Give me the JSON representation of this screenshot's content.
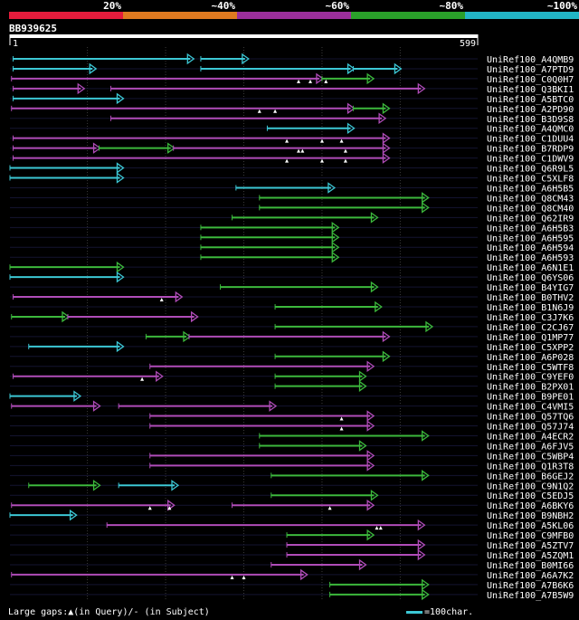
{
  "colors": {
    "background": "#000000",
    "band_20": "#e51c3c",
    "band_40": "#e07a20",
    "band_60": "#9c2f9c",
    "band_80": "#2aa02a",
    "band_100": "#22b5c6",
    "cyan": "#3cc7d4",
    "green": "#3cb83c",
    "magenta": "#b04cb8",
    "ruler": "#ffffff",
    "grid": "#3a3a3a"
  },
  "identity_legend": [
    "20%",
    "~40%",
    "~60%",
    "~80%",
    "~100%"
  ],
  "query": {
    "id": "BB939625",
    "start": "1",
    "end": "599",
    "length": 599
  },
  "hits": [
    {
      "name": "UniRef100_A4QMB9",
      "segments": [
        {
          "s": 5,
          "e": 235,
          "c": "cyan"
        },
        {
          "s": 245,
          "e": 305,
          "c": "cyan"
        }
      ],
      "gaps": []
    },
    {
      "name": "UniRef100_A7PTD9",
      "segments": [
        {
          "s": 5,
          "e": 110,
          "c": "cyan"
        },
        {
          "s": 245,
          "e": 440,
          "c": "cyan"
        },
        {
          "s": 440,
          "e": 500,
          "c": "cyan"
        }
      ],
      "gaps": []
    },
    {
      "name": "UniRef100_C0Q0H7",
      "segments": [
        {
          "s": 3,
          "e": 400,
          "c": "magenta"
        },
        {
          "s": 400,
          "e": 465,
          "c": "green"
        }
      ],
      "gaps": [
        370,
        385,
        405
      ]
    },
    {
      "name": "UniRef100_Q3BKI1",
      "segments": [
        {
          "s": 5,
          "e": 95,
          "c": "magenta"
        },
        {
          "s": 130,
          "e": 530,
          "c": "magenta"
        }
      ],
      "gaps": []
    },
    {
      "name": "UniRef100_A5BTC0",
      "segments": [
        {
          "s": 5,
          "e": 145,
          "c": "cyan"
        }
      ],
      "gaps": []
    },
    {
      "name": "UniRef100_A2PD90",
      "segments": [
        {
          "s": 3,
          "e": 440,
          "c": "magenta"
        },
        {
          "s": 440,
          "e": 485,
          "c": "green"
        }
      ],
      "gaps": [
        320,
        340
      ]
    },
    {
      "name": "UniRef100_B3D9S8",
      "segments": [
        {
          "s": 130,
          "e": 480,
          "c": "magenta"
        }
      ],
      "gaps": []
    },
    {
      "name": "UniRef100_A4QMC0",
      "segments": [
        {
          "s": 330,
          "e": 440,
          "c": "cyan"
        }
      ],
      "gaps": []
    },
    {
      "name": "UniRef100_C1DUU4",
      "segments": [
        {
          "s": 5,
          "e": 485,
          "c": "magenta"
        }
      ],
      "gaps": [
        355,
        400,
        425
      ]
    },
    {
      "name": "UniRef100_B7RDP9",
      "segments": [
        {
          "s": 5,
          "e": 115,
          "c": "magenta"
        },
        {
          "s": 115,
          "e": 210,
          "c": "green"
        },
        {
          "s": 210,
          "e": 485,
          "c": "magenta"
        }
      ],
      "gaps": [
        370,
        375,
        430
      ]
    },
    {
      "name": "UniRef100_C1DWV9",
      "segments": [
        {
          "s": 5,
          "e": 485,
          "c": "magenta"
        }
      ],
      "gaps": [
        355,
        400,
        430
      ]
    },
    {
      "name": "UniRef100_Q6R9L5",
      "segments": [
        {
          "s": 1,
          "e": 145,
          "c": "cyan"
        }
      ],
      "gaps": []
    },
    {
      "name": "UniRef100_C5XLF8",
      "segments": [
        {
          "s": 1,
          "e": 145,
          "c": "cyan"
        }
      ],
      "gaps": []
    },
    {
      "name": "UniRef100_A6H5B5",
      "segments": [
        {
          "s": 290,
          "e": 415,
          "c": "cyan"
        }
      ],
      "gaps": []
    },
    {
      "name": "UniRef100_Q8CM43",
      "segments": [
        {
          "s": 320,
          "e": 535,
          "c": "green"
        }
      ],
      "gaps": []
    },
    {
      "name": "UniRef100_Q8CM40",
      "segments": [
        {
          "s": 320,
          "e": 535,
          "c": "green"
        }
      ],
      "gaps": []
    },
    {
      "name": "UniRef100_Q62IR9",
      "segments": [
        {
          "s": 285,
          "e": 470,
          "c": "green"
        }
      ],
      "gaps": []
    },
    {
      "name": "UniRef100_A6H5B3",
      "segments": [
        {
          "s": 245,
          "e": 420,
          "c": "green"
        }
      ],
      "gaps": []
    },
    {
      "name": "UniRef100_A6H595",
      "segments": [
        {
          "s": 245,
          "e": 420,
          "c": "green"
        }
      ],
      "gaps": []
    },
    {
      "name": "UniRef100_A6H594",
      "segments": [
        {
          "s": 245,
          "e": 420,
          "c": "green"
        }
      ],
      "gaps": []
    },
    {
      "name": "UniRef100_A6H593",
      "segments": [
        {
          "s": 245,
          "e": 420,
          "c": "green"
        }
      ],
      "gaps": []
    },
    {
      "name": "UniRef100_A6N1E1",
      "segments": [
        {
          "s": 1,
          "e": 145,
          "c": "green"
        }
      ],
      "gaps": []
    },
    {
      "name": "UniRef100_Q6YS06",
      "segments": [
        {
          "s": 1,
          "e": 145,
          "c": "cyan"
        }
      ],
      "gaps": []
    },
    {
      "name": "UniRef100_B4YIG7",
      "segments": [
        {
          "s": 270,
          "e": 470,
          "c": "green"
        }
      ],
      "gaps": []
    },
    {
      "name": "UniRef100_B0THV2",
      "segments": [
        {
          "s": 5,
          "e": 220,
          "c": "magenta"
        }
      ],
      "gaps": [
        195
      ]
    },
    {
      "name": "UniRef100_B1N6J9",
      "segments": [
        {
          "s": 340,
          "e": 475,
          "c": "green"
        }
      ],
      "gaps": []
    },
    {
      "name": "UniRef100_C3J7K6",
      "segments": [
        {
          "s": 3,
          "e": 75,
          "c": "green"
        },
        {
          "s": 75,
          "e": 240,
          "c": "magenta"
        }
      ],
      "gaps": []
    },
    {
      "name": "UniRef100_C2CJ67",
      "segments": [
        {
          "s": 340,
          "e": 540,
          "c": "green"
        }
      ],
      "gaps": []
    },
    {
      "name": "UniRef100_Q1MP77",
      "segments": [
        {
          "s": 175,
          "e": 230,
          "c": "green"
        },
        {
          "s": 230,
          "e": 485,
          "c": "magenta"
        }
      ],
      "gaps": []
    },
    {
      "name": "UniRef100_C5XPP2",
      "segments": [
        {
          "s": 25,
          "e": 145,
          "c": "cyan"
        }
      ],
      "gaps": []
    },
    {
      "name": "UniRef100_A6P028",
      "segments": [
        {
          "s": 340,
          "e": 485,
          "c": "green"
        }
      ],
      "gaps": []
    },
    {
      "name": "UniRef100_C5WTF8",
      "segments": [
        {
          "s": 180,
          "e": 465,
          "c": "magenta"
        }
      ],
      "gaps": []
    },
    {
      "name": "UniRef100_C9YEF0",
      "segments": [
        {
          "s": 5,
          "e": 195,
          "c": "magenta"
        },
        {
          "s": 340,
          "e": 455,
          "c": "green"
        }
      ],
      "gaps": [
        170
      ]
    },
    {
      "name": "UniRef100_B2PX01",
      "segments": [
        {
          "s": 340,
          "e": 455,
          "c": "green"
        }
      ],
      "gaps": []
    },
    {
      "name": "UniRef100_B9PE01",
      "segments": [
        {
          "s": 1,
          "e": 90,
          "c": "cyan"
        }
      ],
      "gaps": []
    },
    {
      "name": "UniRef100_C4VMI5",
      "segments": [
        {
          "s": 3,
          "e": 115,
          "c": "magenta"
        },
        {
          "s": 140,
          "e": 340,
          "c": "magenta"
        }
      ],
      "gaps": []
    },
    {
      "name": "UniRef100_Q57TQ6",
      "segments": [
        {
          "s": 180,
          "e": 465,
          "c": "magenta"
        }
      ],
      "gaps": [
        425
      ]
    },
    {
      "name": "UniRef100_Q57J74",
      "segments": [
        {
          "s": 180,
          "e": 465,
          "c": "magenta"
        }
      ],
      "gaps": [
        425
      ]
    },
    {
      "name": "UniRef100_A4ECR2",
      "segments": [
        {
          "s": 320,
          "e": 535,
          "c": "green"
        }
      ],
      "gaps": []
    },
    {
      "name": "UniRef100_A6FJV5",
      "segments": [
        {
          "s": 320,
          "e": 455,
          "c": "green"
        }
      ],
      "gaps": []
    },
    {
      "name": "UniRef100_C5WBP4",
      "segments": [
        {
          "s": 180,
          "e": 465,
          "c": "magenta"
        }
      ],
      "gaps": []
    },
    {
      "name": "UniRef100_Q1R3T8",
      "segments": [
        {
          "s": 180,
          "e": 465,
          "c": "magenta"
        }
      ],
      "gaps": []
    },
    {
      "name": "UniRef100_B6GEJ2",
      "segments": [
        {
          "s": 335,
          "e": 535,
          "c": "green"
        }
      ],
      "gaps": []
    },
    {
      "name": "UniRef100_C9N1Q2",
      "segments": [
        {
          "s": 25,
          "e": 115,
          "c": "green"
        },
        {
          "s": 140,
          "e": 215,
          "c": "cyan"
        }
      ],
      "gaps": []
    },
    {
      "name": "UniRef100_C5EDJ5",
      "segments": [
        {
          "s": 335,
          "e": 470,
          "c": "green"
        }
      ],
      "gaps": []
    },
    {
      "name": "UniRef100_A6BKY6",
      "segments": [
        {
          "s": 3,
          "e": 210,
          "c": "magenta"
        },
        {
          "s": 285,
          "e": 465,
          "c": "magenta"
        }
      ],
      "gaps": [
        180,
        205,
        410
      ]
    },
    {
      "name": "UniRef100_B9NBH2",
      "segments": [
        {
          "s": 1,
          "e": 85,
          "c": "cyan"
        }
      ],
      "gaps": []
    },
    {
      "name": "UniRef100_A5KL06",
      "segments": [
        {
          "s": 125,
          "e": 530,
          "c": "magenta"
        }
      ],
      "gaps": [
        470,
        475
      ]
    },
    {
      "name": "UniRef100_C9MFB0",
      "segments": [
        {
          "s": 355,
          "e": 465,
          "c": "green"
        }
      ],
      "gaps": []
    },
    {
      "name": "UniRef100_A5ZTV7",
      "segments": [
        {
          "s": 355,
          "e": 530,
          "c": "magenta"
        }
      ],
      "gaps": []
    },
    {
      "name": "UniRef100_A5ZQM1",
      "segments": [
        {
          "s": 355,
          "e": 530,
          "c": "magenta"
        }
      ],
      "gaps": []
    },
    {
      "name": "UniRef100_B0MI66",
      "segments": [
        {
          "s": 335,
          "e": 455,
          "c": "magenta"
        }
      ],
      "gaps": []
    },
    {
      "name": "UniRef100_A6A7K2",
      "segments": [
        {
          "s": 3,
          "e": 380,
          "c": "magenta"
        }
      ],
      "gaps": [
        285,
        300
      ]
    },
    {
      "name": "UniRef100_A7B6K6",
      "segments": [
        {
          "s": 410,
          "e": 535,
          "c": "green"
        }
      ],
      "gaps": []
    },
    {
      "name": "UniRef100_A7B5W9",
      "segments": [
        {
          "s": 410,
          "e": 535,
          "c": "green"
        }
      ],
      "gaps": []
    }
  ],
  "footer": {
    "gaps_label": "Large gaps:",
    "gaps_query": "(in Query)/",
    "gaps_dash": "-",
    "gaps_subject": " (in Subject)",
    "scale_label": "=100char.",
    "gap_marker": "▲"
  }
}
